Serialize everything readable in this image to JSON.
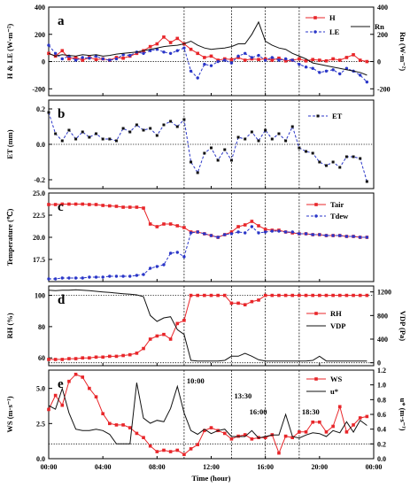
{
  "x_axis": {
    "label": "Time (hour)",
    "ticks": [
      "00:00",
      "04:00",
      "08:00",
      "12:00",
      "16:00",
      "20:00",
      "00:00"
    ],
    "hours": [
      0,
      4,
      8,
      12,
      16,
      20,
      24
    ]
  },
  "events": [
    {
      "hour": 10.0,
      "label": "10:00"
    },
    {
      "hour": 13.5,
      "label": "13:30"
    },
    {
      "hour": 16.0,
      "label": "16:00"
    },
    {
      "hour": 18.5,
      "label": "18:30"
    }
  ],
  "colors": {
    "red": "#e8262a",
    "blue": "#2a36c8",
    "black": "#111111"
  },
  "chart_data": [
    {
      "type": "line",
      "panel_letter": "a",
      "ylabel": "H & LE (W·m⁻²)",
      "ylabel_right": "Rn (W·m⁻²)",
      "ylim": [
        -250,
        400
      ],
      "yticks": [
        -200,
        0,
        200,
        400
      ],
      "yticks_right": [
        -200,
        0,
        200,
        400
      ],
      "ylim_right": [
        -250,
        400
      ],
      "x": [
        0.0,
        0.5,
        1.0,
        1.5,
        2.0,
        2.5,
        3.0,
        3.5,
        4.0,
        4.5,
        5.0,
        5.5,
        6.0,
        6.5,
        7.0,
        7.5,
        8.0,
        8.5,
        9.0,
        9.5,
        10.0,
        10.5,
        11.0,
        11.5,
        12.0,
        12.5,
        13.0,
        13.5,
        14.0,
        14.5,
        15.0,
        15.5,
        16.0,
        16.5,
        17.0,
        17.5,
        18.0,
        18.5,
        19.0,
        19.5,
        20.0,
        20.5,
        21.0,
        21.5,
        22.0,
        22.5,
        23.0,
        23.5
      ],
      "series": [
        {
          "name": "H",
          "color": "red",
          "style": "solid",
          "marker": "square",
          "values": [
            60,
            40,
            80,
            20,
            30,
            10,
            30,
            15,
            20,
            10,
            30,
            25,
            40,
            60,
            80,
            110,
            130,
            180,
            140,
            170,
            130,
            90,
            60,
            30,
            40,
            10,
            20,
            15,
            30,
            10,
            20,
            15,
            20,
            10,
            25,
            5,
            10,
            20,
            5,
            15,
            10,
            5,
            20,
            10,
            30,
            50,
            10,
            0
          ]
        },
        {
          "name": "LE",
          "color": "blue",
          "style": "dash",
          "marker": "circle",
          "values": [
            120,
            60,
            20,
            40,
            10,
            30,
            25,
            40,
            20,
            10,
            20,
            50,
            45,
            70,
            60,
            80,
            90,
            70,
            60,
            80,
            100,
            -70,
            -120,
            -20,
            -30,
            0,
            10,
            -10,
            40,
            60,
            30,
            45,
            10,
            30,
            10,
            20,
            10,
            -20,
            -40,
            -50,
            -80,
            -70,
            -60,
            -90,
            -50,
            -70,
            -100,
            -150
          ]
        },
        {
          "name": "Rn",
          "color": "black",
          "style": "solid",
          "marker": "none",
          "values": [
            60,
            40,
            50,
            45,
            40,
            50,
            45,
            50,
            40,
            45,
            55,
            60,
            65,
            70,
            80,
            90,
            100,
            110,
            115,
            120,
            130,
            150,
            120,
            100,
            90,
            95,
            100,
            110,
            130,
            130,
            200,
            290,
            150,
            120,
            100,
            90,
            60,
            40,
            20,
            -10,
            -20,
            -30,
            -40,
            -50,
            -60,
            -70,
            -80,
            -100
          ]
        }
      ]
    },
    {
      "type": "line",
      "panel_letter": "b",
      "ylabel": "ET (mm)",
      "ylim": [
        -0.25,
        0.25
      ],
      "yticks": [
        -0.2,
        0.0,
        0.2
      ],
      "tick_decimals": 1,
      "x": [
        0.0,
        0.5,
        1.0,
        1.5,
        2.0,
        2.5,
        3.0,
        3.5,
        4.0,
        4.5,
        5.0,
        5.5,
        6.0,
        6.5,
        7.0,
        7.5,
        8.0,
        8.5,
        9.0,
        9.5,
        10.0,
        10.5,
        11.0,
        11.5,
        12.0,
        12.5,
        13.0,
        13.5,
        14.0,
        14.5,
        15.0,
        15.5,
        16.0,
        16.5,
        17.0,
        17.5,
        18.0,
        18.5,
        19.0,
        19.5,
        20.0,
        20.5,
        21.0,
        21.5,
        22.0,
        22.5,
        23.0,
        23.5
      ],
      "series": [
        {
          "name": "ET",
          "color": "blue",
          "style": "dash",
          "marker": "square-black",
          "values": [
            0.18,
            0.06,
            0.02,
            0.08,
            0.03,
            0.07,
            0.04,
            0.06,
            0.03,
            0.03,
            0.02,
            0.09,
            0.07,
            0.11,
            0.08,
            0.09,
            0.05,
            0.11,
            0.13,
            0.1,
            0.14,
            -0.1,
            -0.16,
            -0.05,
            -0.02,
            -0.09,
            -0.03,
            -0.09,
            0.04,
            0.03,
            0.07,
            0.02,
            0.08,
            0.03,
            0.06,
            0.02,
            0.1,
            -0.02,
            -0.04,
            -0.05,
            -0.1,
            -0.12,
            -0.1,
            -0.13,
            -0.07,
            -0.07,
            -0.08,
            -0.21
          ]
        }
      ]
    },
    {
      "type": "line",
      "panel_letter": "c",
      "ylabel": "Temperature (℃)",
      "ylim": [
        15,
        25
      ],
      "yticks": [
        17.5,
        20.0,
        22.5,
        25.0
      ],
      "tick_decimals": 1,
      "x": [
        0.0,
        0.5,
        1.0,
        1.5,
        2.0,
        2.5,
        3.0,
        3.5,
        4.0,
        4.5,
        5.0,
        5.5,
        6.0,
        6.5,
        7.0,
        7.5,
        8.0,
        8.5,
        9.0,
        9.5,
        10.0,
        10.5,
        11.0,
        11.5,
        12.0,
        12.5,
        13.0,
        13.5,
        14.0,
        14.5,
        15.0,
        15.5,
        16.0,
        16.5,
        17.0,
        17.5,
        18.0,
        18.5,
        19.0,
        19.5,
        20.0,
        20.5,
        21.0,
        21.5,
        22.0,
        22.5,
        23.0,
        23.5
      ],
      "series": [
        {
          "name": "Tair",
          "color": "red",
          "style": "solid",
          "marker": "square",
          "values": [
            23.7,
            23.7,
            23.75,
            23.75,
            23.75,
            23.75,
            23.7,
            23.7,
            23.6,
            23.55,
            23.5,
            23.4,
            23.4,
            23.4,
            23.3,
            21.5,
            21.2,
            21.5,
            21.5,
            21.3,
            21.1,
            20.6,
            20.6,
            20.4,
            20.2,
            20.0,
            20.3,
            20.6,
            21.2,
            21.4,
            21.8,
            21.3,
            20.9,
            20.8,
            20.8,
            20.6,
            20.5,
            20.4,
            20.4,
            20.3,
            20.3,
            20.2,
            20.2,
            20.2,
            20.1,
            20.1,
            20.0,
            20.0
          ]
        },
        {
          "name": "Tdew",
          "color": "blue",
          "style": "dash",
          "marker": "circle",
          "values": [
            15.3,
            15.3,
            15.4,
            15.4,
            15.4,
            15.4,
            15.5,
            15.5,
            15.5,
            15.6,
            15.6,
            15.6,
            15.6,
            15.7,
            15.8,
            16.5,
            16.7,
            16.9,
            18.2,
            18.3,
            17.8,
            20.5,
            20.6,
            20.4,
            20.2,
            20.0,
            20.3,
            20.4,
            20.6,
            20.5,
            21.2,
            20.5,
            20.6,
            20.7,
            20.7,
            20.6,
            20.6,
            20.4,
            20.4,
            20.3,
            20.3,
            20.2,
            20.2,
            20.2,
            20.1,
            20.1,
            20.0,
            20.0
          ]
        }
      ]
    },
    {
      "type": "line",
      "panel_letter": "d",
      "ylabel": "RH (%)",
      "ylabel_right": "VDP (Pa)",
      "ylim": [
        55,
        106
      ],
      "yticks": [
        60,
        80,
        100
      ],
      "ylim_right": [
        -50,
        1300
      ],
      "yticks_right": [
        0,
        400,
        800,
        1200
      ],
      "x": [
        0.0,
        0.5,
        1.0,
        1.5,
        2.0,
        2.5,
        3.0,
        3.5,
        4.0,
        4.5,
        5.0,
        5.5,
        6.0,
        6.5,
        7.0,
        7.5,
        8.0,
        8.5,
        9.0,
        9.5,
        10.0,
        10.5,
        11.0,
        11.5,
        12.0,
        12.5,
        13.0,
        13.5,
        14.0,
        14.5,
        15.0,
        15.5,
        16.0,
        16.5,
        17.0,
        17.5,
        18.0,
        18.5,
        19.0,
        19.5,
        20.0,
        20.5,
        21.0,
        21.5,
        22.0,
        22.5,
        23.0,
        23.5
      ],
      "series": [
        {
          "name": "RH",
          "color": "red",
          "style": "solid",
          "marker": "square",
          "axis": "left",
          "values": [
            59,
            59,
            59,
            59.5,
            59.5,
            60,
            60,
            60.5,
            60.5,
            61,
            61,
            61.5,
            62,
            63,
            66,
            72,
            74,
            75,
            72,
            82,
            84,
            100,
            100,
            100,
            100,
            100,
            100,
            95,
            95,
            94,
            96,
            97,
            100,
            100,
            100,
            100,
            100,
            100,
            100,
            100,
            100,
            100,
            100,
            100,
            100,
            100,
            100,
            100
          ]
        },
        {
          "name": "VDP",
          "color": "black",
          "style": "solid",
          "marker": "none",
          "axis": "right",
          "values": [
            1230,
            1220,
            1230,
            1230,
            1235,
            1230,
            1220,
            1210,
            1200,
            1190,
            1180,
            1170,
            1160,
            1150,
            1120,
            800,
            700,
            760,
            780,
            560,
            480,
            40,
            30,
            30,
            30,
            30,
            40,
            110,
            110,
            160,
            110,
            50,
            30,
            30,
            30,
            30,
            30,
            30,
            30,
            40,
            110,
            30,
            30,
            30,
            30,
            30,
            30,
            30
          ]
        }
      ]
    },
    {
      "type": "line",
      "panel_letter": "e",
      "ylabel": "WS (m·s⁻¹)",
      "ylabel_right": "u* (m·s⁻¹)",
      "ylim": [
        0,
        6.3
      ],
      "yticks": [
        0.0,
        2.5,
        5.0
      ],
      "tick_decimals": 1,
      "ylim_right": [
        0,
        1.2
      ],
      "yticks_right": [
        0.0,
        0.2,
        0.4,
        0.6,
        0.8,
        1.0,
        1.2
      ],
      "x": [
        0.0,
        0.5,
        1.0,
        1.5,
        2.0,
        2.5,
        3.0,
        3.5,
        4.0,
        4.5,
        5.0,
        5.5,
        6.0,
        6.5,
        7.0,
        7.5,
        8.0,
        8.5,
        9.0,
        9.5,
        10.0,
        10.5,
        11.0,
        11.5,
        12.0,
        12.5,
        13.0,
        13.5,
        14.0,
        14.5,
        15.0,
        15.5,
        16.0,
        16.5,
        17.0,
        17.5,
        18.0,
        18.5,
        19.0,
        19.5,
        20.0,
        20.5,
        21.0,
        21.5,
        22.0,
        22.5,
        23.0,
        23.5
      ],
      "series": [
        {
          "name": "WS",
          "color": "red",
          "style": "solid",
          "marker": "square",
          "axis": "left",
          "values": [
            3.5,
            4.5,
            3.8,
            5.5,
            6.0,
            5.8,
            5.0,
            4.4,
            3.2,
            2.5,
            2.4,
            2.4,
            2.2,
            1.8,
            1.5,
            0.9,
            0.5,
            0.6,
            0.5,
            0.6,
            0.3,
            0.7,
            1.0,
            2.0,
            2.2,
            2.0,
            1.8,
            1.4,
            1.6,
            1.7,
            1.4,
            1.5,
            1.5,
            1.7,
            0.4,
            1.6,
            1.5,
            1.9,
            1.9,
            2.6,
            2.6,
            1.9,
            2.3,
            3.7,
            1.9,
            2.4,
            2.9,
            3.0
          ]
        },
        {
          "name": "u*",
          "color": "black",
          "style": "solid",
          "marker": "none",
          "axis": "right",
          "values": [
            0.72,
            0.67,
            0.95,
            0.62,
            0.4,
            0.38,
            0.38,
            0.4,
            0.38,
            0.33,
            0.2,
            0.2,
            0.2,
            1.03,
            0.55,
            0.48,
            0.52,
            0.5,
            0.68,
            0.98,
            0.62,
            0.38,
            0.33,
            0.4,
            0.34,
            0.38,
            0.4,
            0.3,
            0.3,
            0.3,
            0.38,
            0.28,
            0.3,
            0.32,
            0.32,
            0.6,
            0.3,
            0.28,
            0.32,
            0.35,
            0.34,
            0.3,
            0.38,
            0.35,
            0.5,
            0.36,
            0.52,
            0.45
          ]
        }
      ]
    }
  ]
}
